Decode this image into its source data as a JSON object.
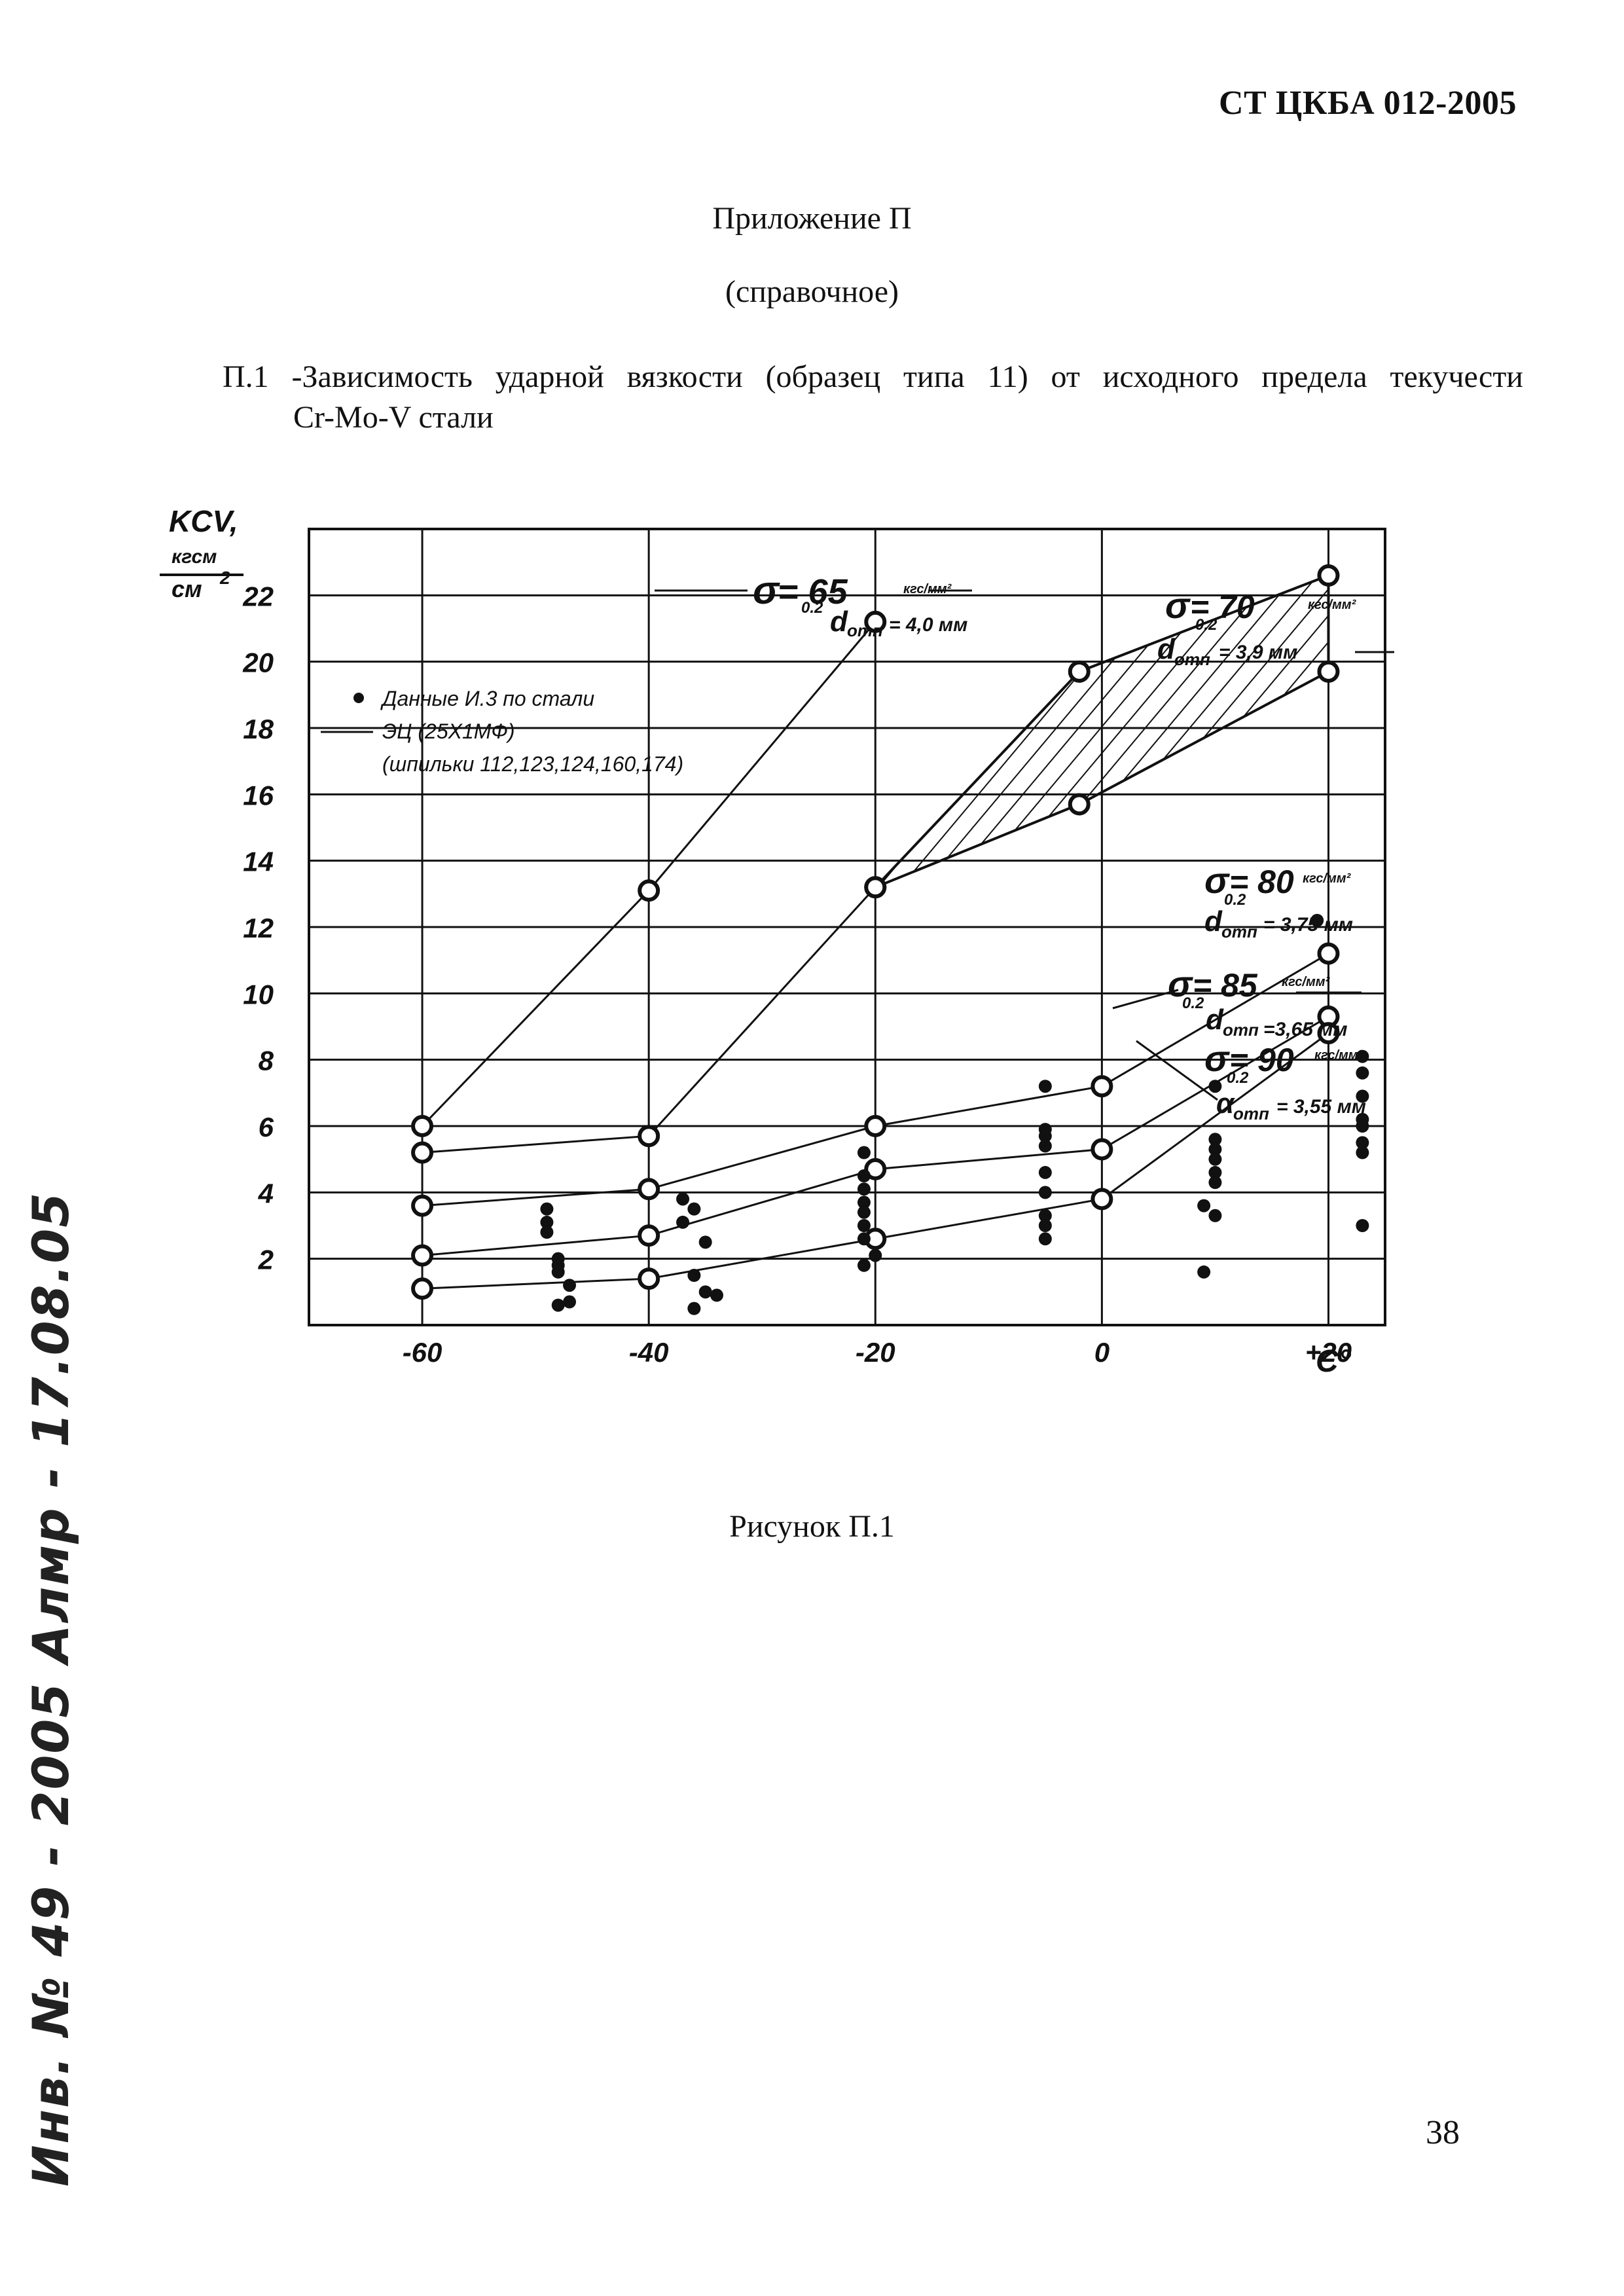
{
  "header": {
    "doc_code": "СТ ЦКБА 012-2005"
  },
  "appendix": {
    "title": "Приложение П",
    "subtitle": "(справочное)"
  },
  "caption": {
    "line1": "П.1 -Зависимость ударной вязкости (образец типа 11) от исходного предела текучести",
    "line2": "Cr-Mo-V стали"
  },
  "figure": {
    "caption": "Рисунок П.1"
  },
  "page_number": "38",
  "stamp": {
    "text": "Инв. № 49 - 2005 Алмр - 17.08.05"
  },
  "chart_data": {
    "type": "scatter",
    "ylabel_lines": [
      "KCV,",
      "кгсм",
      "см"
    ],
    "ylabel_exp": "2",
    "xlabel": "С°",
    "xlim": [
      -70,
      25
    ],
    "ylim": [
      0,
      24
    ],
    "x_ticks": [
      {
        "value": -60,
        "label": "-60"
      },
      {
        "value": -40,
        "label": "-40"
      },
      {
        "value": -20,
        "label": "-20"
      },
      {
        "value": 0,
        "label": "0"
      },
      {
        "value": 20,
        "label": "+20"
      }
    ],
    "y_ticks": [
      {
        "value": 2,
        "label": "2"
      },
      {
        "value": 4,
        "label": "4"
      },
      {
        "value": 6,
        "label": "6"
      },
      {
        "value": 8,
        "label": "8"
      },
      {
        "value": 10,
        "label": "10"
      },
      {
        "value": 12,
        "label": "12"
      },
      {
        "value": 14,
        "label": "14"
      },
      {
        "value": 16,
        "label": "16"
      },
      {
        "value": 18,
        "label": "18"
      },
      {
        "value": 20,
        "label": "20"
      },
      {
        "value": 22,
        "label": "22"
      }
    ],
    "grid": true,
    "legend": {
      "position": "top-left",
      "lines": [
        "Данные И.3 по стали",
        "ЭЦ (25Х1МФ)",
        "(шпильки 112,123,124,160,174)"
      ]
    },
    "series": [
      {
        "points": [
          [
            -60,
            6.0
          ],
          [
            -40,
            13.1
          ],
          [
            -20,
            21.2
          ]
        ],
        "label_main": "= 65",
        "label_unit": "кгс/мм²",
        "label_sub": "0.2",
        "d_value": "= 4,0 мм"
      },
      {
        "points": [
          [
            -60,
            5.2
          ],
          [
            -40,
            5.7
          ],
          [
            -20,
            13.2
          ],
          [
            -2,
            15.7
          ],
          [
            20,
            19.7
          ]
        ],
        "label_main": "= 70",
        "label_unit": "кгс/мм²",
        "label_sub": "0.2",
        "d_value": "= 3,9 мм"
      },
      {
        "points": [
          [
            -20,
            13.2
          ],
          [
            -2,
            19.7
          ],
          [
            20,
            22.6
          ]
        ]
      },
      {
        "points": [
          [
            -60,
            3.6
          ],
          [
            -40,
            4.1
          ],
          [
            -20,
            6.0
          ],
          [
            0,
            7.2
          ],
          [
            20,
            11.2
          ]
        ],
        "label_main": "= 80",
        "label_unit": "кгс/мм²",
        "label_sub": "0.2",
        "d_value": "= 3,75 мм"
      },
      {
        "points": [
          [
            -60,
            2.1
          ],
          [
            -40,
            2.7
          ],
          [
            -20,
            4.7
          ],
          [
            0,
            5.3
          ],
          [
            20,
            9.3
          ]
        ],
        "label_main": "= 85",
        "label_unit": "кгс/мм²",
        "label_sub": "0.2",
        "d_value": "=3,65 мм"
      },
      {
        "points": [
          [
            -60,
            1.1
          ],
          [
            -40,
            1.4
          ],
          [
            -20,
            2.6
          ],
          [
            0,
            3.8
          ],
          [
            20,
            8.8
          ]
        ],
        "label_main": "= 90",
        "label_unit": "кгс/мм²",
        "label_sub": "0.2",
        "d_value": "= 3,55 мм"
      }
    ],
    "scatter_points": [
      [
        -49,
        3.5
      ],
      [
        -49,
        3.1
      ],
      [
        -49,
        2.8
      ],
      [
        -48,
        2.0
      ],
      [
        -48,
        1.8
      ],
      [
        -48,
        1.6
      ],
      [
        -47,
        0.7
      ],
      [
        -48,
        0.6
      ],
      [
        -47,
        1.2
      ],
      [
        -37,
        3.8
      ],
      [
        -36,
        3.5
      ],
      [
        -37,
        3.1
      ],
      [
        -35,
        2.5
      ],
      [
        -36,
        1.5
      ],
      [
        -35,
        1.0
      ],
      [
        -34,
        0.9
      ],
      [
        -36,
        0.5
      ],
      [
        -21,
        5.2
      ],
      [
        -21,
        4.5
      ],
      [
        -21,
        4.1
      ],
      [
        -21,
        3.7
      ],
      [
        -21,
        3.4
      ],
      [
        -21,
        3.0
      ],
      [
        -21,
        2.6
      ],
      [
        -20,
        2.1
      ],
      [
        -21,
        1.8
      ],
      [
        -5,
        7.2
      ],
      [
        -5,
        5.9
      ],
      [
        -5,
        5.7
      ],
      [
        -5,
        5.4
      ],
      [
        -5,
        4.6
      ],
      [
        -5,
        4.0
      ],
      [
        -5,
        3.3
      ],
      [
        -5,
        3.0
      ],
      [
        -5,
        2.6
      ],
      [
        10,
        7.2
      ],
      [
        10,
        5.6
      ],
      [
        10,
        5.3
      ],
      [
        10,
        5.0
      ],
      [
        10,
        4.6
      ],
      [
        10,
        4.3
      ],
      [
        9,
        3.6
      ],
      [
        10,
        3.3
      ],
      [
        9,
        1.6
      ],
      [
        19,
        12.2
      ],
      [
        23,
        8.1
      ],
      [
        23,
        7.6
      ],
      [
        23,
        6.9
      ],
      [
        23,
        6.2
      ],
      [
        23,
        6.0
      ],
      [
        23,
        5.5
      ],
      [
        23,
        5.2
      ],
      [
        23,
        3.0
      ]
    ]
  }
}
